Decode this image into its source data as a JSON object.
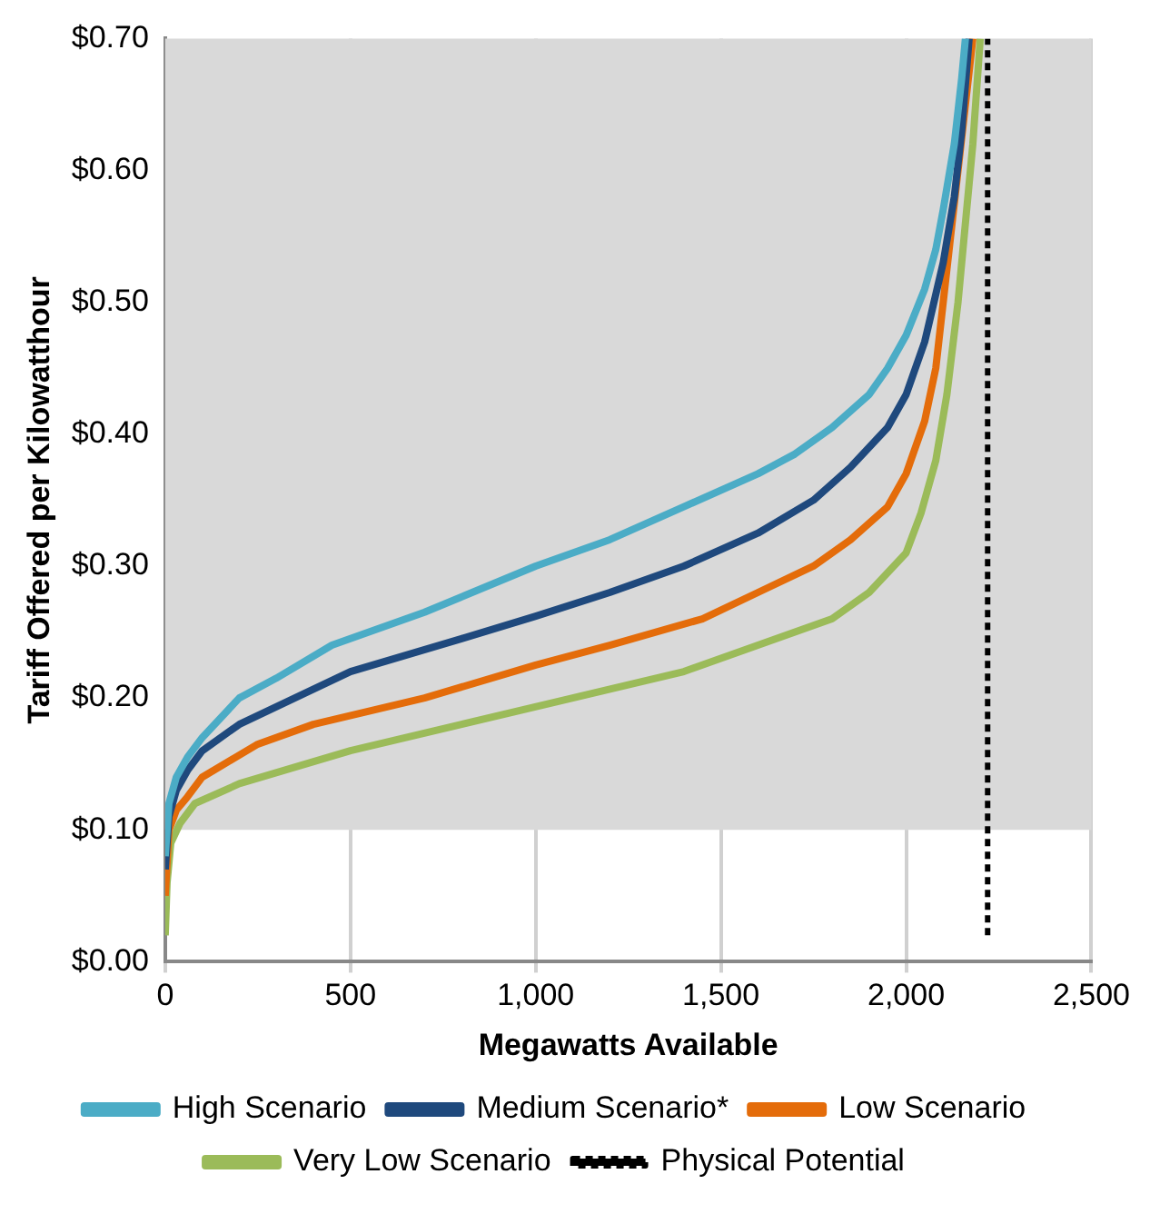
{
  "chart_data": {
    "type": "line",
    "xlabel": "Megawatts Available",
    "ylabel": "Tariff Offered per Kilowatthour",
    "xlim": [
      0,
      2500
    ],
    "ylim": [
      0,
      0.7
    ],
    "xticks": [
      0,
      500,
      {
        "value": 1000,
        "label": "1,000"
      },
      {
        "value": 1500,
        "label": "1,500"
      },
      {
        "value": 2000,
        "label": "2,000"
      },
      {
        "value": 2500,
        "label": "2,500"
      }
    ],
    "yticks": [
      {
        "value": 0,
        "label": "$0.00"
      },
      {
        "value": 0.1,
        "label": "$0.10"
      },
      {
        "value": 0.2,
        "label": "$0.20"
      },
      {
        "value": 0.3,
        "label": "$0.30"
      },
      {
        "value": 0.4,
        "label": "$0.40"
      },
      {
        "value": 0.5,
        "label": "$0.50"
      },
      {
        "value": 0.6,
        "label": "$0.60"
      },
      {
        "value": 0.7,
        "label": "$0.70"
      }
    ],
    "grid": "x",
    "legend": "bottom",
    "marker": "none",
    "bands": [
      {
        "axis": "y",
        "from": 0.1,
        "to": 0.7,
        "color": "#d9d9d9"
      }
    ],
    "series": [
      {
        "name": "High Scenario",
        "color": "#4bacc6",
        "x": [
          0,
          10,
          30,
          60,
          100,
          200,
          300,
          450,
          700,
          1000,
          1200,
          1400,
          1600,
          1700,
          1800,
          1900,
          1950,
          2000,
          2050,
          2080,
          2100,
          2130,
          2150,
          2160
        ],
        "values": [
          0.08,
          0.12,
          0.14,
          0.155,
          0.17,
          0.2,
          0.215,
          0.24,
          0.265,
          0.3,
          0.32,
          0.345,
          0.37,
          0.385,
          0.405,
          0.43,
          0.45,
          0.475,
          0.51,
          0.54,
          0.57,
          0.62,
          0.67,
          0.7
        ]
      },
      {
        "name": "Medium Scenario*",
        "color": "#1f497d",
        "x": [
          0,
          10,
          30,
          60,
          100,
          200,
          500,
          800,
          1000,
          1200,
          1400,
          1600,
          1750,
          1850,
          1950,
          2000,
          2050,
          2100,
          2130,
          2150,
          2170
        ],
        "values": [
          0.07,
          0.11,
          0.13,
          0.145,
          0.16,
          0.18,
          0.22,
          0.245,
          0.262,
          0.28,
          0.3,
          0.325,
          0.35,
          0.375,
          0.405,
          0.43,
          0.47,
          0.53,
          0.58,
          0.63,
          0.7
        ]
      },
      {
        "name": "Low Scenario",
        "color": "#e46c0a",
        "x": [
          0,
          10,
          30,
          60,
          100,
          250,
          400,
          700,
          1000,
          1200,
          1450,
          1600,
          1750,
          1850,
          1950,
          2000,
          2050,
          2080,
          2100,
          2120,
          2140,
          2160,
          2180
        ],
        "values": [
          0.05,
          0.1,
          0.115,
          0.125,
          0.14,
          0.165,
          0.18,
          0.2,
          0.225,
          0.24,
          0.26,
          0.28,
          0.3,
          0.32,
          0.345,
          0.37,
          0.41,
          0.45,
          0.5,
          0.55,
          0.6,
          0.65,
          0.7
        ]
      },
      {
        "name": "Very Low Scenario",
        "color": "#9bbb59",
        "x": [
          0,
          5,
          15,
          40,
          80,
          200,
          500,
          800,
          1100,
          1400,
          1600,
          1800,
          1900,
          2000,
          2040,
          2080,
          2110,
          2140,
          2160,
          2180,
          2200
        ],
        "values": [
          0.02,
          0.06,
          0.09,
          0.105,
          0.12,
          0.135,
          0.16,
          0.18,
          0.2,
          0.22,
          0.24,
          0.26,
          0.28,
          0.31,
          0.34,
          0.38,
          0.43,
          0.5,
          0.56,
          0.62,
          0.7
        ]
      },
      {
        "name": "Physical Potential",
        "color": "#000000",
        "line_style": "dashed",
        "x": [
          2220,
          2220
        ],
        "values": [
          0.02,
          0.7
        ]
      }
    ]
  }
}
